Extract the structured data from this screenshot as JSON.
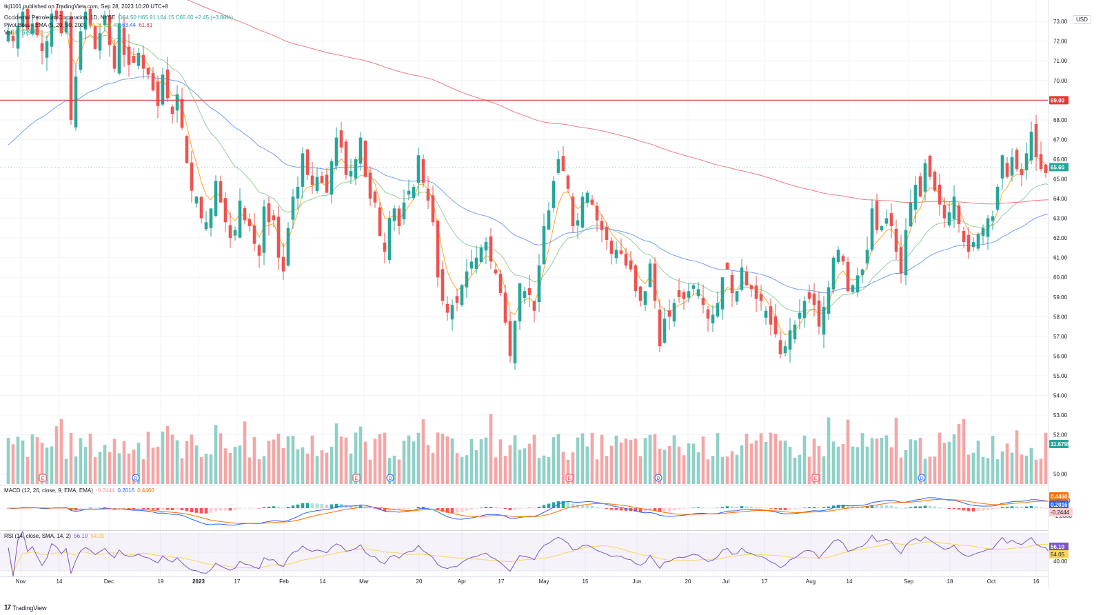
{
  "header": {
    "published": "tkj1101 published on TradingView.com, Sep 28, 2023 10:20 UTC+8",
    "symbol": "Occidental Petroleum Corporation, 1D, NYSE",
    "ohlc": "O64.50 H65.91 L64.15 C65.60 +2.45 (+3.88%)",
    "ema_label": "Pivot Boss - EMA (5, 20, 50, 200)",
    "ema_values": [
      "64.21",
      "64.40",
      "63.44",
      "61.81"
    ],
    "vol_label": "Vol",
    "vol_value": "11.679M",
    "currency": "USD"
  },
  "macd_panel": {
    "label": "MACD (12, 26, close, 9, EMA, EMA)",
    "values": [
      "-0.2444",
      "0.2016",
      "0.4460"
    ],
    "axis_ticks": [
      "1.0000",
      "-1.0000"
    ],
    "tags": [
      "0.4460",
      "0.2016",
      "-0.2444"
    ]
  },
  "rsi_panel": {
    "label": "RSI (14, close, SMA, 14, 2)",
    "values": [
      "56.10",
      "54.05"
    ],
    "axis_ticks": [
      "40.00"
    ],
    "tags": [
      "56.10",
      "54.05"
    ]
  },
  "footer": {
    "brand": "TradingView"
  },
  "colors": {
    "up": "#26a69a",
    "down": "#ef5350",
    "ema5": "#ff9800",
    "ema20": "#81c784",
    "ema50": "#5b8def",
    "ema200": "#f06466",
    "resistance": "#e53935",
    "macd": "#2962ff",
    "signal": "#ff6d00",
    "rsi": "#7e57c2"
  },
  "chart_data": {
    "type": "candlestick",
    "price_axis": {
      "ylim": [
        49.5,
        73.6
      ],
      "ticks": [
        "73.00",
        "72.00",
        "71.00",
        "70.00",
        "68.00",
        "67.00",
        "66.00",
        "65.00",
        "64.00",
        "63.00",
        "62.00",
        "61.00",
        "60.00",
        "59.00",
        "58.00",
        "57.00",
        "56.00",
        "55.00",
        "54.00",
        "53.00",
        "52.00",
        "50.00"
      ]
    },
    "last_price_tag": "65.60",
    "resistance_level": 69.0,
    "resistance_tag": "69.00",
    "volume_tag": "11.679M",
    "x_ticks": [
      "Nov",
      "14",
      "Dec",
      "19",
      "2023",
      "17",
      "Feb",
      "14",
      "Mar",
      "20",
      "Apr",
      "17",
      "May",
      "15",
      "Jun",
      "20",
      "Jul",
      "17",
      "Aug",
      "14",
      "Sep",
      "18",
      "Oct",
      "16"
    ],
    "events": [
      "E",
      "D",
      "E",
      "D",
      "E",
      "D",
      "E",
      "D"
    ],
    "closes": [
      72.5,
      72.0,
      72.8,
      73.5,
      72.6,
      72.9,
      72.3,
      71.5,
      72.0,
      73.4,
      73.1,
      72.4,
      73.0,
      68.0,
      70.2,
      72.5,
      73.5,
      72.8,
      71.6,
      72.4,
      73.3,
      71.8,
      70.6,
      72.9,
      71.3,
      70.8,
      70.9,
      71.4,
      70.6,
      70.3,
      69.5,
      68.7,
      70.3,
      69.1,
      68.3,
      69.3,
      67.6,
      65.8,
      64.4,
      64.1,
      63.0,
      62.8,
      63.5,
      64.9,
      63.8,
      62.8,
      62.0,
      62.4,
      63.9,
      62.9,
      62.6,
      61.7,
      61.1,
      63.6,
      62.8,
      62.9,
      61.0,
      60.3,
      62.5,
      64.1,
      64.6,
      66.3,
      65.2,
      64.7,
      65.1,
      64.8,
      64.3,
      65.9,
      67.1,
      66.6,
      65.2,
      65.4,
      66.0,
      67.1,
      65.1,
      64.0,
      63.8,
      62.1,
      61.3,
      63.0,
      63.5,
      62.6,
      63.8,
      64.4,
      64.6,
      66.2,
      64.8,
      63.9,
      62.8,
      60.0,
      58.8,
      58.2,
      58.6,
      58.7,
      59.6,
      60.3,
      60.8,
      61.0,
      61.5,
      61.8,
      60.8,
      60.2,
      59.2,
      57.7,
      56.0,
      57.8,
      59.7,
      59.3,
      59.1,
      58.3,
      60.6,
      62.6,
      63.4,
      64.9,
      66.0,
      65.4,
      64.5,
      62.6,
      62.9,
      64.1,
      64.3,
      63.7,
      62.9,
      62.4,
      61.9,
      61.2,
      61.4,
      61.2,
      60.6,
      60.4,
      59.3,
      58.8,
      59.3,
      60.7,
      58.8,
      56.5,
      57.9,
      58.0,
      58.7,
      59.0,
      58.9,
      59.3,
      59.6,
      59.4,
      58.6,
      57.9,
      58.1,
      58.7,
      60.0,
      60.4,
      59.2,
      59.3,
      60.5,
      59.6,
      59.4,
      58.9,
      58.8,
      58.3,
      57.6,
      57.1,
      56.1,
      56.5,
      57.3,
      57.6,
      58.2,
      58.8,
      58.9,
      58.6,
      57.5,
      58.5,
      59.5,
      61.0,
      61.4,
      60.8,
      59.3,
      59.6,
      60.1,
      60.4,
      61.4,
      63.5,
      62.4,
      62.6,
      63.0,
      62.6,
      61.3,
      60.2,
      62.4,
      63.8,
      64.7,
      64.1,
      65.8,
      65.1,
      64.4,
      63.7,
      63.0,
      63.3,
      64.1,
      62.7,
      61.8,
      61.3,
      61.8,
      62.2,
      62.5,
      63.0,
      63.1,
      64.6,
      66.2,
      65.1,
      66.1,
      65.5,
      65.2,
      66.3,
      67.4,
      66.1,
      65.5,
      65.3,
      63.8,
      62.8,
      62.6,
      63.1,
      65.6
    ]
  }
}
